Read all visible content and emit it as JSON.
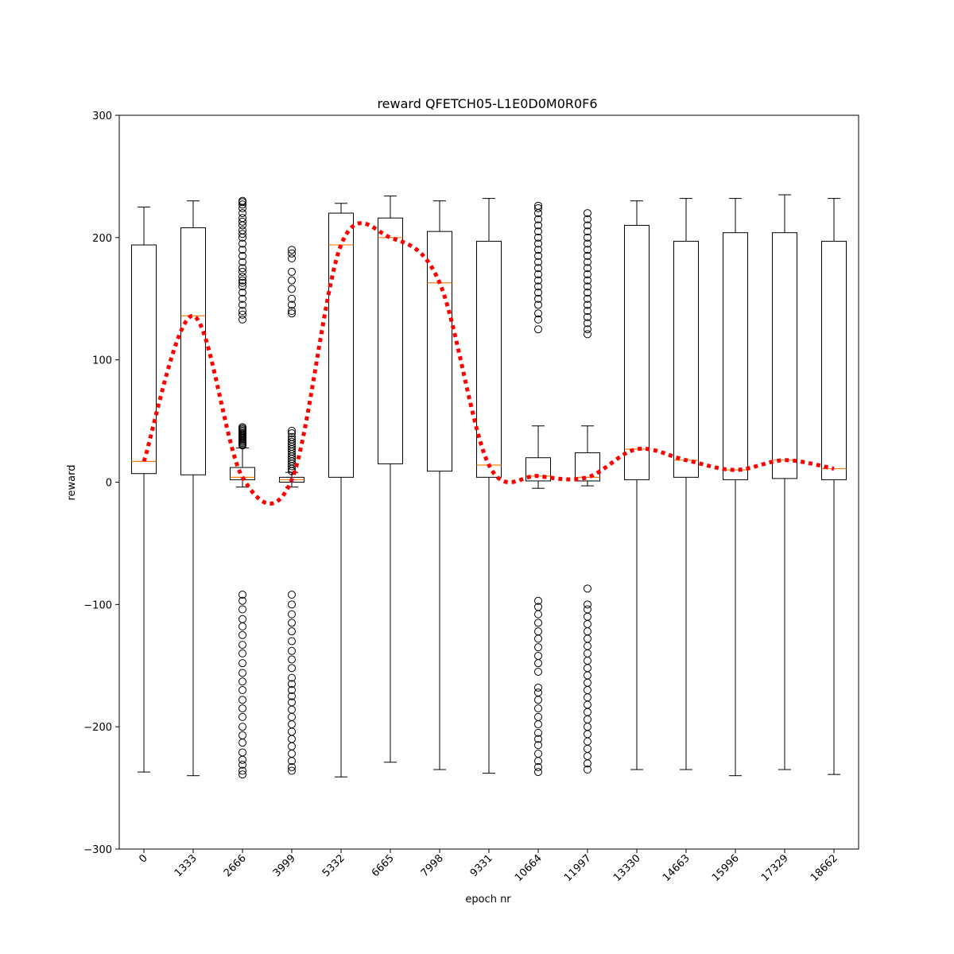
{
  "chart_data": {
    "type": "box",
    "title": "reward QFETCH05-L1E0D0M0R0F6",
    "xlabel": "epoch nr",
    "ylabel": "reward",
    "ylim": [
      -300,
      300
    ],
    "yticks": [
      -300,
      -200,
      -100,
      0,
      100,
      200,
      300
    ],
    "ytick_labels": [
      "−300",
      "−200",
      "−100",
      "0",
      "100",
      "200",
      "300"
    ],
    "categories": [
      "0",
      "1333",
      "2666",
      "3999",
      "5332",
      "6665",
      "7998",
      "9331",
      "10664",
      "11997",
      "13330",
      "14663",
      "15996",
      "17329",
      "18662"
    ],
    "boxes": [
      {
        "whisker_low": -237,
        "q1": 7,
        "median": 17,
        "q3": 194,
        "whisker_high": 225,
        "outliers": []
      },
      {
        "whisker_low": -240,
        "q1": 6,
        "median": 136,
        "q3": 208,
        "whisker_high": 230,
        "outliers": []
      },
      {
        "whisker_low": -4,
        "q1": 2,
        "median": 4,
        "q3": 12,
        "whisker_high": 28,
        "outliers": [
          30,
          31,
          32,
          33,
          34,
          35,
          36,
          37,
          38,
          39,
          40,
          41,
          42,
          43,
          44,
          45,
          133,
          137,
          140,
          145,
          150,
          155,
          160,
          163,
          165,
          168,
          172,
          175,
          180,
          185,
          190,
          195,
          200,
          203,
          206,
          210,
          213,
          216,
          220,
          224,
          227,
          229,
          230,
          -92,
          -97,
          -104,
          -112,
          -118,
          -125,
          -133,
          -140,
          -148,
          -156,
          -163,
          -170,
          -178,
          -185,
          -192,
          -200,
          -207,
          -213,
          -221,
          -227,
          -231,
          -236,
          -239
        ]
      },
      {
        "whisker_low": -4,
        "q1": 0,
        "median": 2,
        "q3": 4,
        "whisker_high": 8,
        "outliers": [
          9,
          11,
          13,
          15,
          17,
          19,
          21,
          23,
          25,
          27,
          29,
          31,
          33,
          35,
          37,
          40,
          42,
          138,
          140,
          145,
          150,
          158,
          165,
          172,
          183,
          187,
          190,
          -92,
          -100,
          -108,
          -115,
          -122,
          -130,
          -138,
          -145,
          -152,
          -160,
          -165,
          -170,
          -175,
          -180,
          -186,
          -192,
          -198,
          -204,
          -210,
          -216,
          -222,
          -228,
          -233,
          -236
        ]
      },
      {
        "whisker_low": -241,
        "q1": 4,
        "median": 194,
        "q3": 220,
        "whisker_high": 228,
        "outliers": []
      },
      {
        "whisker_low": -229,
        "q1": 15,
        "median": 200,
        "q3": 216,
        "whisker_high": 234,
        "outliers": []
      },
      {
        "whisker_low": -235,
        "q1": 9,
        "median": 163,
        "q3": 205,
        "whisker_high": 230,
        "outliers": []
      },
      {
        "whisker_low": -238,
        "q1": 4,
        "median": 14,
        "q3": 197,
        "whisker_high": 232,
        "outliers": []
      },
      {
        "whisker_low": -5,
        "q1": 1,
        "median": 5,
        "q3": 20,
        "whisker_high": 46,
        "outliers": [
          125,
          133,
          138,
          145,
          150,
          155,
          160,
          165,
          170,
          175,
          180,
          185,
          190,
          195,
          200,
          205,
          210,
          215,
          220,
          224,
          226,
          -97,
          -102,
          -108,
          -115,
          -122,
          -128,
          -135,
          -142,
          -148,
          -155,
          -168,
          -172,
          -178,
          -185,
          -192,
          -198,
          -205,
          -210,
          -215,
          -222,
          -228,
          -233,
          -237
        ]
      },
      {
        "whisker_low": -3,
        "q1": 1,
        "median": 4,
        "q3": 24,
        "whisker_high": 46,
        "outliers": [
          121,
          125,
          130,
          135,
          140,
          145,
          150,
          155,
          160,
          165,
          170,
          175,
          180,
          185,
          190,
          195,
          200,
          205,
          210,
          215,
          220,
          -87,
          -100,
          -104,
          -110,
          -116,
          -122,
          -128,
          -134,
          -140,
          -146,
          -152,
          -158,
          -164,
          -170,
          -176,
          -182,
          -188,
          -194,
          -200,
          -206,
          -212,
          -218,
          -224,
          -230,
          -235
        ]
      },
      {
        "whisker_low": -235,
        "q1": 2,
        "median": 27,
        "q3": 210,
        "whisker_high": 230,
        "outliers": []
      },
      {
        "whisker_low": -235,
        "q1": 4,
        "median": 18,
        "q3": 197,
        "whisker_high": 232,
        "outliers": []
      },
      {
        "whisker_low": -240,
        "q1": 2,
        "median": 10,
        "q3": 204,
        "whisker_high": 232,
        "outliers": []
      },
      {
        "whisker_low": -235,
        "q1": 3,
        "median": 18,
        "q3": 204,
        "whisker_high": 235,
        "outliers": []
      },
      {
        "whisker_low": -239,
        "q1": 2,
        "median": 11,
        "q3": 197,
        "whisker_high": 232,
        "outliers": []
      }
    ],
    "trend_line": {
      "style": "dotted",
      "values": [
        17,
        136,
        4,
        2,
        194,
        200,
        163,
        14,
        5,
        4,
        27,
        18,
        10,
        18,
        11
      ]
    },
    "colors": {
      "box": "#000000",
      "median": "#ff7f0e",
      "trend": "#ff0000",
      "outlier": "#000000"
    },
    "grid": false,
    "legend": "none"
  }
}
